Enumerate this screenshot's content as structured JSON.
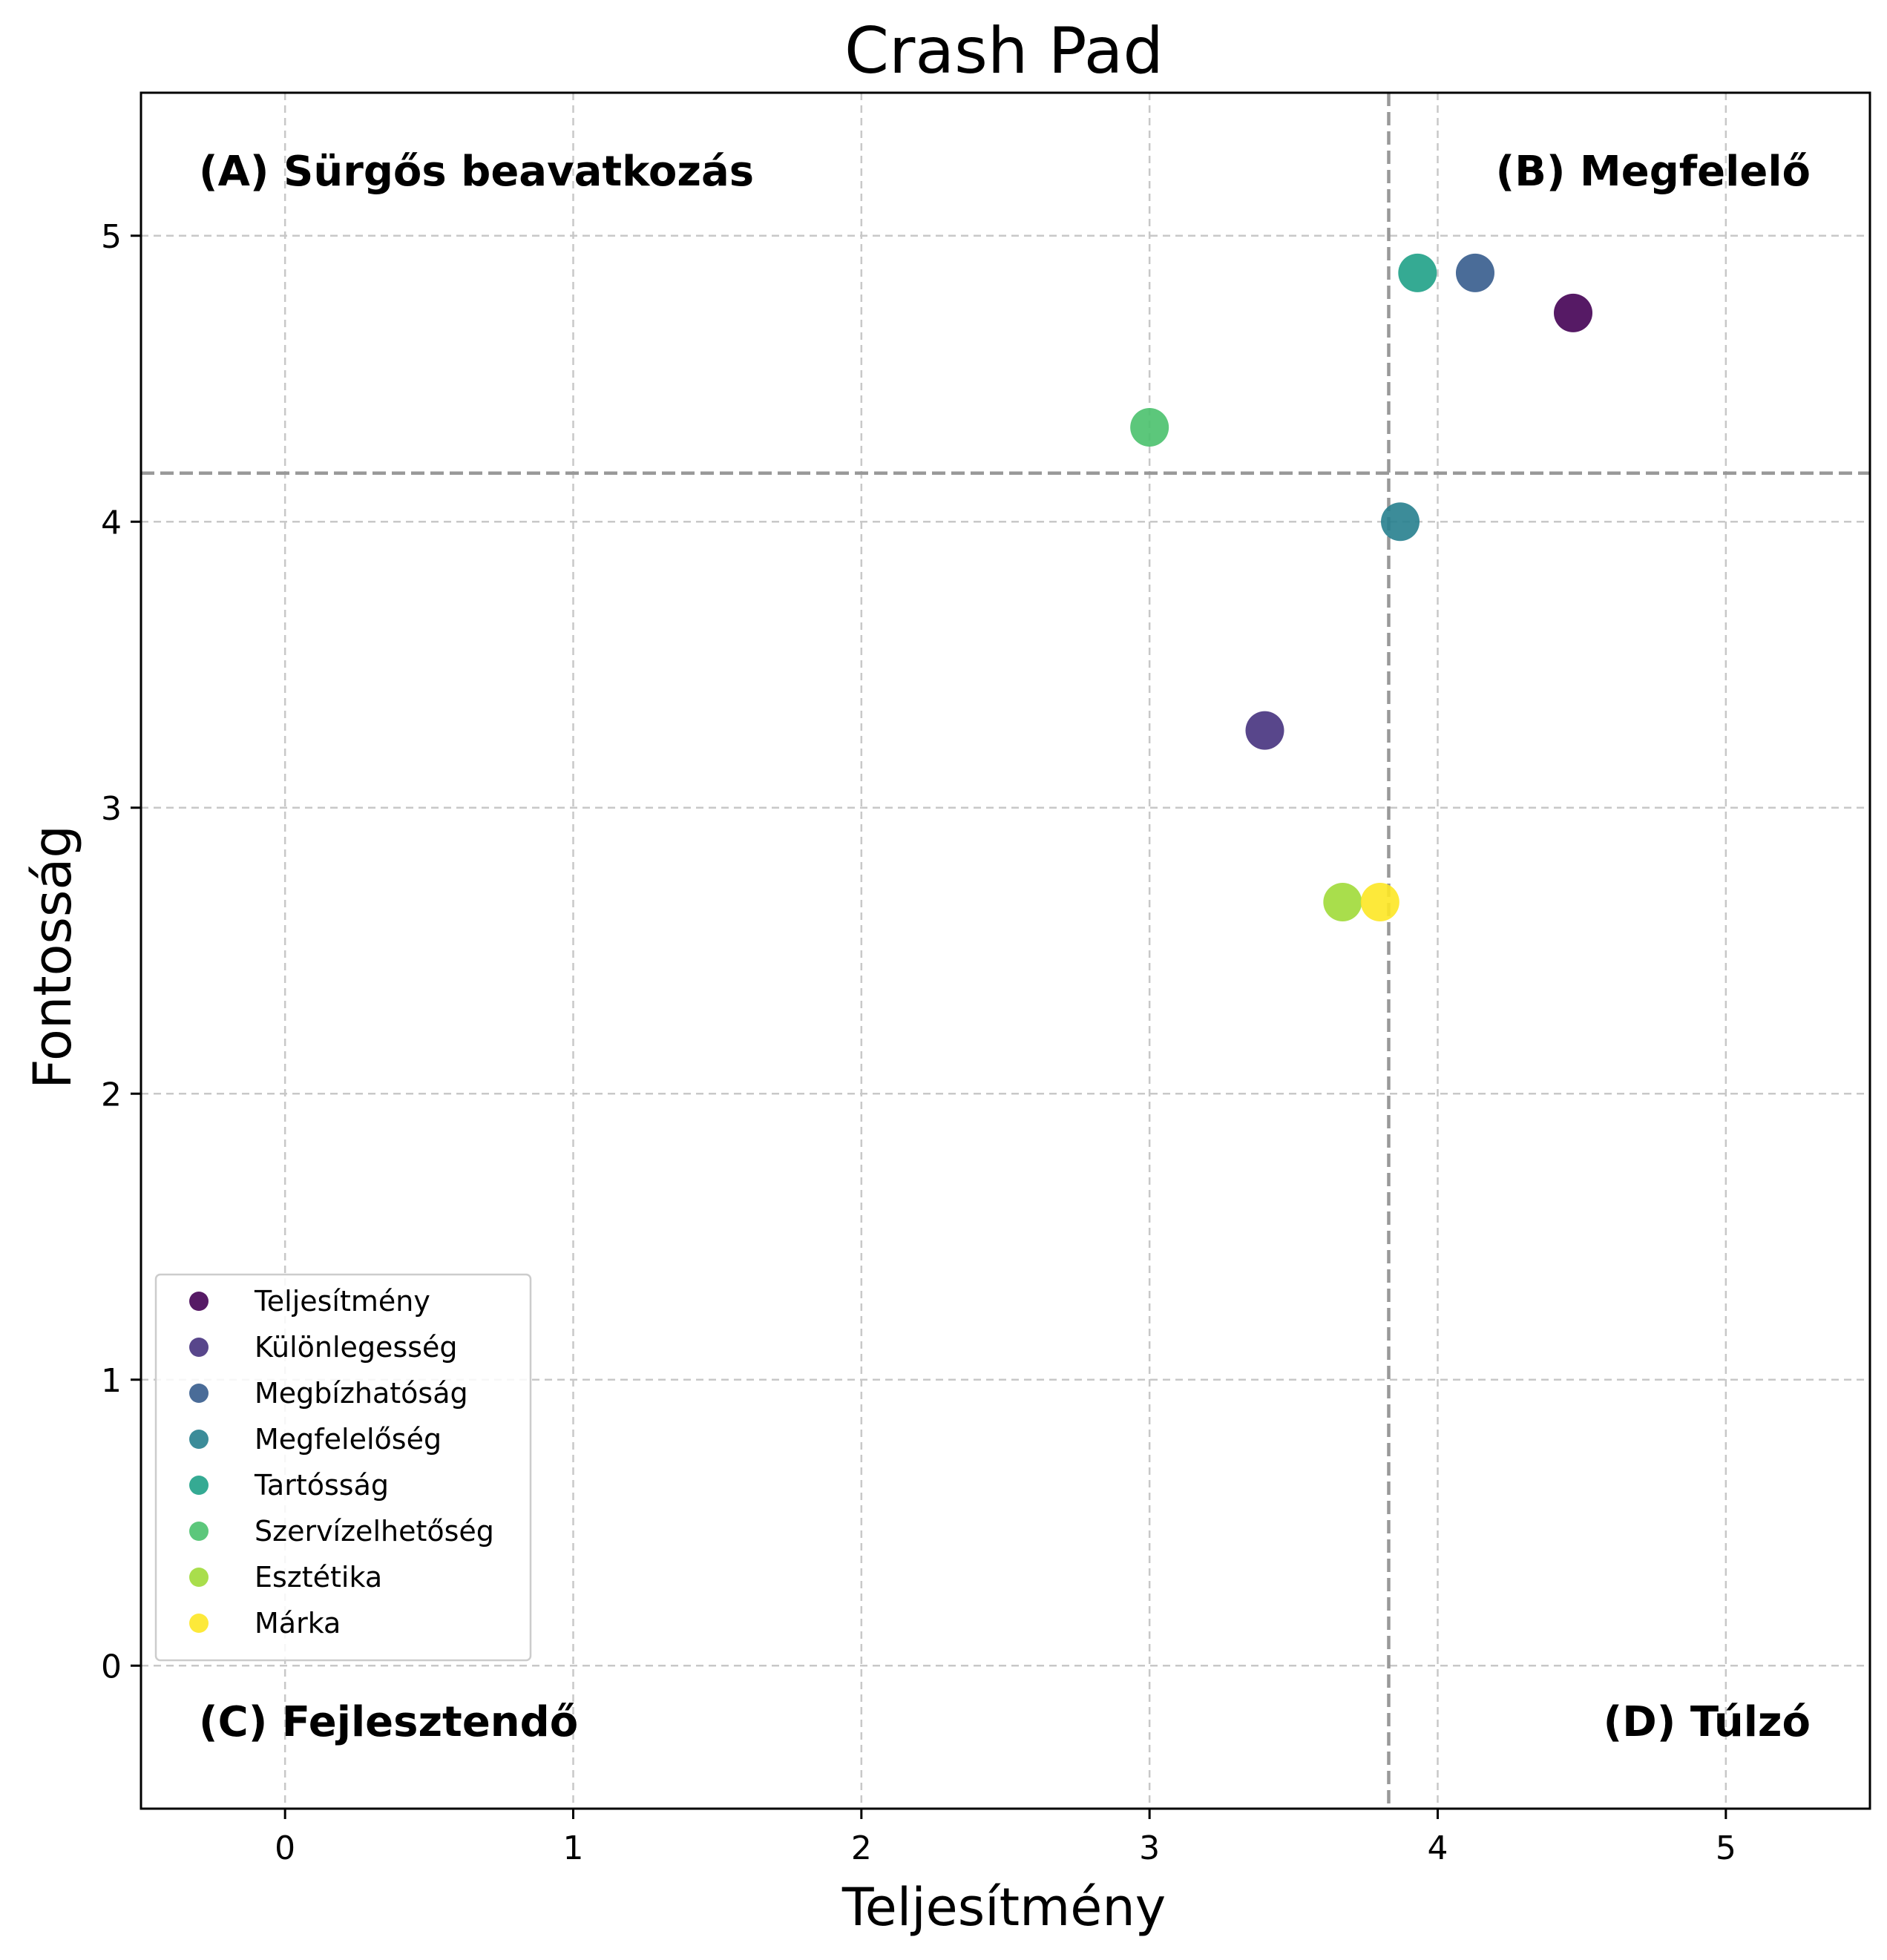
{
  "chart_data": {
    "type": "scatter",
    "title": "Crash Pad",
    "xlabel": "Teljesítmény",
    "ylabel": "Fontosság",
    "xlim": [
      -0.5,
      5.5
    ],
    "ylim": [
      -0.5,
      5.5
    ],
    "xticks": [
      0,
      1,
      2,
      3,
      4,
      5
    ],
    "yticks": [
      0,
      1,
      2,
      3,
      4,
      5
    ],
    "grid": true,
    "legend_position": "lower-left",
    "mean_lines": {
      "x": 3.83,
      "y": 4.17
    },
    "quadrants": {
      "A": "(A) Sürgős beavatkozás",
      "B": "(B) Megfelelő",
      "C": "(C) Fejlesztendő",
      "D": "(D) Túlzó"
    },
    "series": [
      {
        "name": "Teljesítmény",
        "x": 4.47,
        "y": 4.73,
        "color": "#440154"
      },
      {
        "name": "Különlegesség",
        "x": 3.4,
        "y": 3.27,
        "color": "#46327e"
      },
      {
        "name": "Megbízhatóság",
        "x": 4.13,
        "y": 4.87,
        "color": "#365c8d"
      },
      {
        "name": "Megfelelőség",
        "x": 3.87,
        "y": 4.0,
        "color": "#277f8e"
      },
      {
        "name": "Tartósság",
        "x": 3.93,
        "y": 4.87,
        "color": "#1fa187"
      },
      {
        "name": "Szervízelhetőség",
        "x": 3.0,
        "y": 4.33,
        "color": "#4ac16d"
      },
      {
        "name": "Esztétika",
        "x": 3.67,
        "y": 2.67,
        "color": "#a0da39"
      },
      {
        "name": "Márka",
        "x": 3.8,
        "y": 2.67,
        "color": "#fde725"
      }
    ]
  }
}
